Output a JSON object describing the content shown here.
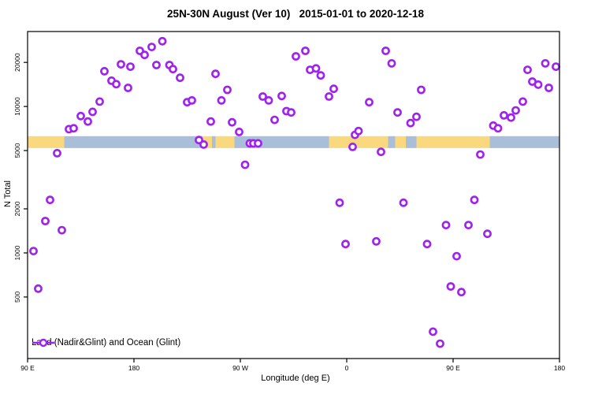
{
  "title": "25N-30N August (Ver 10)   2015-01-01 to 2020-12-18",
  "legend": {
    "label": "Land (Nadir&Glint) and Ocean (Glint)"
  },
  "chart_data": {
    "type": "scatter",
    "title": "25N-30N August (Ver 10)   2015-01-01 to 2020-12-18",
    "xlabel": "Longitude (deg E)",
    "ylabel": "N Total",
    "y_scale": "log",
    "xlim": [
      90,
      540
    ],
    "ylim": [
      190,
      32500
    ],
    "grid": false,
    "x_ticks": [
      {
        "value": 90,
        "label": "90 E"
      },
      {
        "value": 180,
        "label": "180"
      },
      {
        "value": 270,
        "label": "90 W"
      },
      {
        "value": 360,
        "label": "0"
      },
      {
        "value": 450,
        "label": "90 E"
      },
      {
        "value": 540,
        "label": "180"
      }
    ],
    "y_ticks": [
      500,
      1000,
      2000,
      5000,
      10000,
      20000
    ],
    "colors": {
      "point": "#A020F0",
      "land_band": "#FAD87E",
      "ocean_band": "#A9BFD9",
      "axis": "#000000"
    },
    "surface_band": {
      "value_range": [
        5200,
        6270
      ],
      "segments": [
        {
          "from": 90,
          "to": 121,
          "surface": "land"
        },
        {
          "from": 121,
          "to": 238,
          "surface": "ocean"
        },
        {
          "from": 238,
          "to": 246,
          "surface": "land"
        },
        {
          "from": 246,
          "to": 249,
          "surface": "ocean"
        },
        {
          "from": 249,
          "to": 265,
          "surface": "land"
        },
        {
          "from": 265,
          "to": 345,
          "surface": "ocean"
        },
        {
          "from": 345,
          "to": 395,
          "surface": "land"
        },
        {
          "from": 395,
          "to": 401,
          "surface": "ocean"
        },
        {
          "from": 401,
          "to": 410,
          "surface": "land"
        },
        {
          "from": 410,
          "to": 419,
          "surface": "ocean"
        },
        {
          "from": 419,
          "to": 481,
          "surface": "land"
        },
        {
          "from": 481,
          "to": 540,
          "surface": "ocean"
        }
      ]
    },
    "series": [
      {
        "name": "Land (Nadir&Glint) and Ocean (Glint)",
        "points_lon_value": [
          [
            95,
            1030
          ],
          [
            99,
            570
          ],
          [
            105,
            1650
          ],
          [
            109,
            2300
          ],
          [
            115,
            4800
          ],
          [
            119,
            1430
          ],
          [
            125,
            7000
          ],
          [
            129,
            7100
          ],
          [
            135,
            8600
          ],
          [
            141,
            7900
          ],
          [
            145,
            9200
          ],
          [
            151,
            10800
          ],
          [
            155,
            17400
          ],
          [
            161,
            15000
          ],
          [
            165,
            14200
          ],
          [
            169,
            19400
          ],
          [
            175,
            13400
          ],
          [
            177,
            18700
          ],
          [
            185,
            24000
          ],
          [
            189,
            22500
          ],
          [
            195,
            25500
          ],
          [
            199,
            19200
          ],
          [
            204,
            27900
          ],
          [
            210,
            19200
          ],
          [
            213,
            18000
          ],
          [
            219,
            15700
          ],
          [
            225,
            10700
          ],
          [
            229,
            11000
          ],
          [
            235,
            5900
          ],
          [
            239,
            5500
          ],
          [
            245,
            7900
          ],
          [
            249,
            16700
          ],
          [
            254,
            11000
          ],
          [
            259,
            13000
          ],
          [
            263,
            7800
          ],
          [
            269,
            6700
          ],
          [
            274,
            4000
          ],
          [
            278,
            5600
          ],
          [
            281,
            5600
          ],
          [
            285,
            5600
          ],
          [
            289,
            11700
          ],
          [
            294,
            11000
          ],
          [
            299,
            8100
          ],
          [
            305,
            11800
          ],
          [
            309,
            9300
          ],
          [
            313,
            9100
          ],
          [
            317,
            22000
          ],
          [
            325,
            24000
          ],
          [
            329,
            17800
          ],
          [
            334,
            18200
          ],
          [
            338,
            16300
          ],
          [
            345,
            11700
          ],
          [
            349,
            13200
          ],
          [
            354,
            2200
          ],
          [
            359,
            1150
          ],
          [
            365,
            5300
          ],
          [
            367,
            6400
          ],
          [
            370,
            6800
          ],
          [
            379,
            10700
          ],
          [
            385,
            1200
          ],
          [
            389,
            4900
          ],
          [
            393,
            24000
          ],
          [
            398,
            19700
          ],
          [
            403,
            9100
          ],
          [
            408,
            2200
          ],
          [
            414,
            7700
          ],
          [
            419,
            8500
          ],
          [
            423,
            13000
          ],
          [
            428,
            1150
          ],
          [
            433,
            290
          ],
          [
            439,
            240
          ],
          [
            444,
            1550
          ],
          [
            448,
            590
          ],
          [
            453,
            950
          ],
          [
            457,
            540
          ],
          [
            463,
            1550
          ],
          [
            468,
            2300
          ],
          [
            473,
            4700
          ],
          [
            479,
            1350
          ],
          [
            484,
            7400
          ],
          [
            488,
            7100
          ],
          [
            493,
            8700
          ],
          [
            499,
            8400
          ],
          [
            503,
            9400
          ],
          [
            509,
            10800
          ],
          [
            513,
            17800
          ],
          [
            517,
            14800
          ],
          [
            522,
            14100
          ],
          [
            528,
            19700
          ],
          [
            531,
            13400
          ],
          [
            537,
            18700
          ]
        ]
      }
    ]
  }
}
